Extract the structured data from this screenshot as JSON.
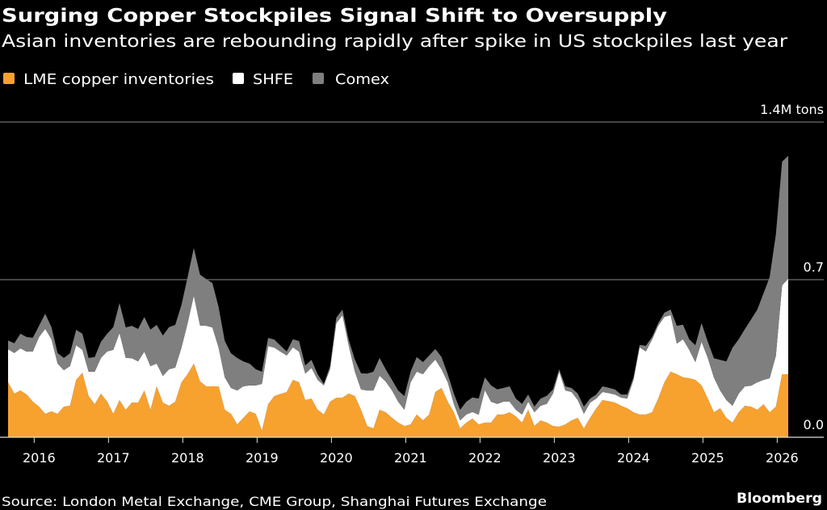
{
  "header": {
    "title": "Surging Copper Stockpiles Signal Shift to Oversupply",
    "subtitle": "Asian inventories are rebounding rapidly after spike in US stockpiles last year"
  },
  "footer": {
    "source": "Source: London Metal Exchange, CME Group, Shanghai Futures Exchange",
    "brand": "Bloomberg"
  },
  "colors": {
    "background": "#000000",
    "lme": "#f7a12f",
    "shfe": "#ffffff",
    "comex": "#7f7f7f",
    "grid": "#8a8a8a"
  },
  "chart_data": {
    "type": "area",
    "stacked": true,
    "title": "Surging Copper Stockpiles Signal Shift to Oversupply",
    "subtitle": "Asian inventories are rebounding rapidly after spike in US stockpiles last year",
    "unit": "M tons",
    "ylim": [
      0,
      1.4
    ],
    "y_ticks": [
      {
        "value": 0,
        "label": "0.0"
      },
      {
        "value": 0.7,
        "label": "0.7"
      },
      {
        "value": 1.4,
        "label": "1.4M tons"
      }
    ],
    "x_ticks": [
      "2016",
      "2017",
      "2018",
      "2019",
      "2020",
      "2021",
      "2022",
      "2023",
      "2024",
      "2025",
      "2026"
    ],
    "grid": "horizontal",
    "legend_position": "top-left",
    "x": [
      "2015-08",
      "2015-09",
      "2015-10",
      "2015-11",
      "2015-12",
      "2016-01",
      "2016-02",
      "2016-03",
      "2016-04",
      "2016-05",
      "2016-06",
      "2016-07",
      "2016-08",
      "2016-09",
      "2016-10",
      "2016-11",
      "2016-12",
      "2017-01",
      "2017-02",
      "2017-03",
      "2017-04",
      "2017-05",
      "2017-06",
      "2017-07",
      "2017-08",
      "2017-09",
      "2017-10",
      "2017-11",
      "2017-12",
      "2018-01",
      "2018-02",
      "2018-03",
      "2018-04",
      "2018-05",
      "2018-06",
      "2018-07",
      "2018-08",
      "2018-09",
      "2018-10",
      "2018-11",
      "2018-12",
      "2019-01",
      "2019-02",
      "2019-03",
      "2019-04",
      "2019-05",
      "2019-06",
      "2019-07",
      "2019-08",
      "2019-09",
      "2019-10",
      "2019-11",
      "2019-12",
      "2020-01",
      "2020-02",
      "2020-03",
      "2020-04",
      "2020-05",
      "2020-06",
      "2020-07",
      "2020-08",
      "2020-09",
      "2020-10",
      "2020-11",
      "2020-12",
      "2021-01",
      "2021-02",
      "2021-03",
      "2021-04",
      "2021-05",
      "2021-06",
      "2021-07",
      "2021-08",
      "2021-09",
      "2021-10",
      "2021-11",
      "2021-12",
      "2022-01",
      "2022-02",
      "2022-03",
      "2022-04",
      "2022-05",
      "2022-06",
      "2022-07",
      "2022-08",
      "2022-09",
      "2022-10",
      "2022-11",
      "2022-12",
      "2023-01",
      "2023-02",
      "2023-03",
      "2023-04",
      "2023-05",
      "2023-06",
      "2023-07",
      "2023-08",
      "2023-09",
      "2023-10",
      "2023-11",
      "2023-12",
      "2024-01",
      "2024-02",
      "2024-03",
      "2024-04",
      "2024-05",
      "2024-06",
      "2024-07",
      "2024-08",
      "2024-09",
      "2024-10",
      "2024-11",
      "2024-12",
      "2025-01",
      "2025-02",
      "2025-03",
      "2025-04",
      "2025-05",
      "2025-06",
      "2025-07",
      "2025-08",
      "2025-09",
      "2025-10",
      "2025-11",
      "2025-12",
      "2026-01",
      "2026-02"
    ],
    "series": [
      {
        "name": "LME copper inventories",
        "color": "#f7a12f",
        "values": [
          0.244,
          0.194,
          0.208,
          0.19,
          0.158,
          0.136,
          0.104,
          0.115,
          0.104,
          0.136,
          0.14,
          0.255,
          0.287,
          0.183,
          0.147,
          0.194,
          0.158,
          0.104,
          0.165,
          0.122,
          0.154,
          0.154,
          0.208,
          0.122,
          0.226,
          0.154,
          0.14,
          0.158,
          0.244,
          0.28,
          0.327,
          0.248,
          0.226,
          0.226,
          0.226,
          0.122,
          0.104,
          0.057,
          0.086,
          0.115,
          0.104,
          0.029,
          0.147,
          0.183,
          0.192,
          0.201,
          0.255,
          0.244,
          0.165,
          0.172,
          0.122,
          0.101,
          0.158,
          0.176,
          0.176,
          0.194,
          0.183,
          0.122,
          0.05,
          0.039,
          0.122,
          0.111,
          0.086,
          0.065,
          0.05,
          0.057,
          0.101,
          0.075,
          0.101,
          0.201,
          0.219,
          0.158,
          0.111,
          0.039,
          0.065,
          0.083,
          0.057,
          0.065,
          0.065,
          0.101,
          0.101,
          0.111,
          0.093,
          0.065,
          0.122,
          0.05,
          0.075,
          0.065,
          0.05,
          0.047,
          0.057,
          0.075,
          0.086,
          0.039,
          0.086,
          0.129,
          0.165,
          0.16,
          0.154,
          0.14,
          0.129,
          0.111,
          0.101,
          0.101,
          0.111,
          0.172,
          0.244,
          0.291,
          0.28,
          0.266,
          0.262,
          0.255,
          0.23,
          0.172,
          0.111,
          0.129,
          0.086,
          0.065,
          0.111,
          0.14,
          0.136,
          0.122,
          0.147,
          0.111,
          0.136,
          0.28,
          0.28
        ]
      },
      {
        "name": "SHFE",
        "color": "#ffffff",
        "values": [
          0.147,
          0.18,
          0.187,
          0.19,
          0.223,
          0.309,
          0.377,
          0.32,
          0.223,
          0.162,
          0.176,
          0.154,
          0.101,
          0.108,
          0.144,
          0.158,
          0.223,
          0.284,
          0.298,
          0.23,
          0.197,
          0.183,
          0.172,
          0.194,
          0.101,
          0.118,
          0.162,
          0.151,
          0.154,
          0.226,
          0.302,
          0.248,
          0.269,
          0.262,
          0.172,
          0.144,
          0.115,
          0.151,
          0.14,
          0.115,
          0.126,
          0.208,
          0.258,
          0.215,
          0.188,
          0.162,
          0.144,
          0.136,
          0.118,
          0.136,
          0.133,
          0.129,
          0.144,
          0.33,
          0.366,
          0.215,
          0.108,
          0.09,
          0.158,
          0.169,
          0.151,
          0.136,
          0.122,
          0.093,
          0.072,
          0.187,
          0.19,
          0.205,
          0.215,
          0.144,
          0.083,
          0.086,
          0.036,
          0.036,
          0.036,
          0.029,
          0.043,
          0.144,
          0.093,
          0.047,
          0.057,
          0.047,
          0.029,
          0.036,
          0.036,
          0.061,
          0.065,
          0.083,
          0.144,
          0.244,
          0.151,
          0.126,
          0.079,
          0.065,
          0.068,
          0.043,
          0.036,
          0.036,
          0.036,
          0.036,
          0.043,
          0.144,
          0.298,
          0.28,
          0.323,
          0.323,
          0.291,
          0.251,
          0.136,
          0.169,
          0.126,
          0.079,
          0.194,
          0.18,
          0.154,
          0.079,
          0.079,
          0.075,
          0.083,
          0.086,
          0.093,
          0.122,
          0.108,
          0.151,
          0.226,
          0.395,
          0.424
        ]
      },
      {
        "name": "Comex",
        "color": "#7f7f7f",
        "values": [
          0.039,
          0.043,
          0.065,
          0.065,
          0.061,
          0.05,
          0.068,
          0.054,
          0.047,
          0.054,
          0.057,
          0.068,
          0.072,
          0.061,
          0.065,
          0.072,
          0.079,
          0.101,
          0.133,
          0.136,
          0.144,
          0.144,
          0.154,
          0.162,
          0.172,
          0.18,
          0.187,
          0.19,
          0.19,
          0.205,
          0.212,
          0.226,
          0.208,
          0.197,
          0.18,
          0.162,
          0.154,
          0.144,
          0.111,
          0.097,
          0.072,
          0.054,
          0.036,
          0.036,
          0.027,
          0.018,
          0.036,
          0.047,
          0.036,
          0.036,
          0.025,
          0.007,
          0.014,
          0.025,
          0.025,
          0.025,
          0.054,
          0.072,
          0.075,
          0.083,
          0.079,
          0.054,
          0.047,
          0.05,
          0.061,
          0.047,
          0.065,
          0.054,
          0.047,
          0.047,
          0.054,
          0.036,
          0.047,
          0.047,
          0.057,
          0.065,
          0.072,
          0.057,
          0.072,
          0.065,
          0.061,
          0.068,
          0.05,
          0.047,
          0.032,
          0.025,
          0.032,
          0.036,
          0.018,
          0.011,
          0.018,
          0.018,
          0.029,
          0.032,
          0.018,
          0.018,
          0.025,
          0.024,
          0.022,
          0.014,
          0.018,
          0.011,
          0.011,
          0.025,
          0.011,
          0.011,
          0.018,
          0.025,
          0.079,
          0.065,
          0.047,
          0.075,
          0.083,
          0.072,
          0.086,
          0.136,
          0.172,
          0.258,
          0.241,
          0.255,
          0.294,
          0.323,
          0.384,
          0.449,
          0.539,
          0.549,
          0.546
        ]
      }
    ]
  }
}
